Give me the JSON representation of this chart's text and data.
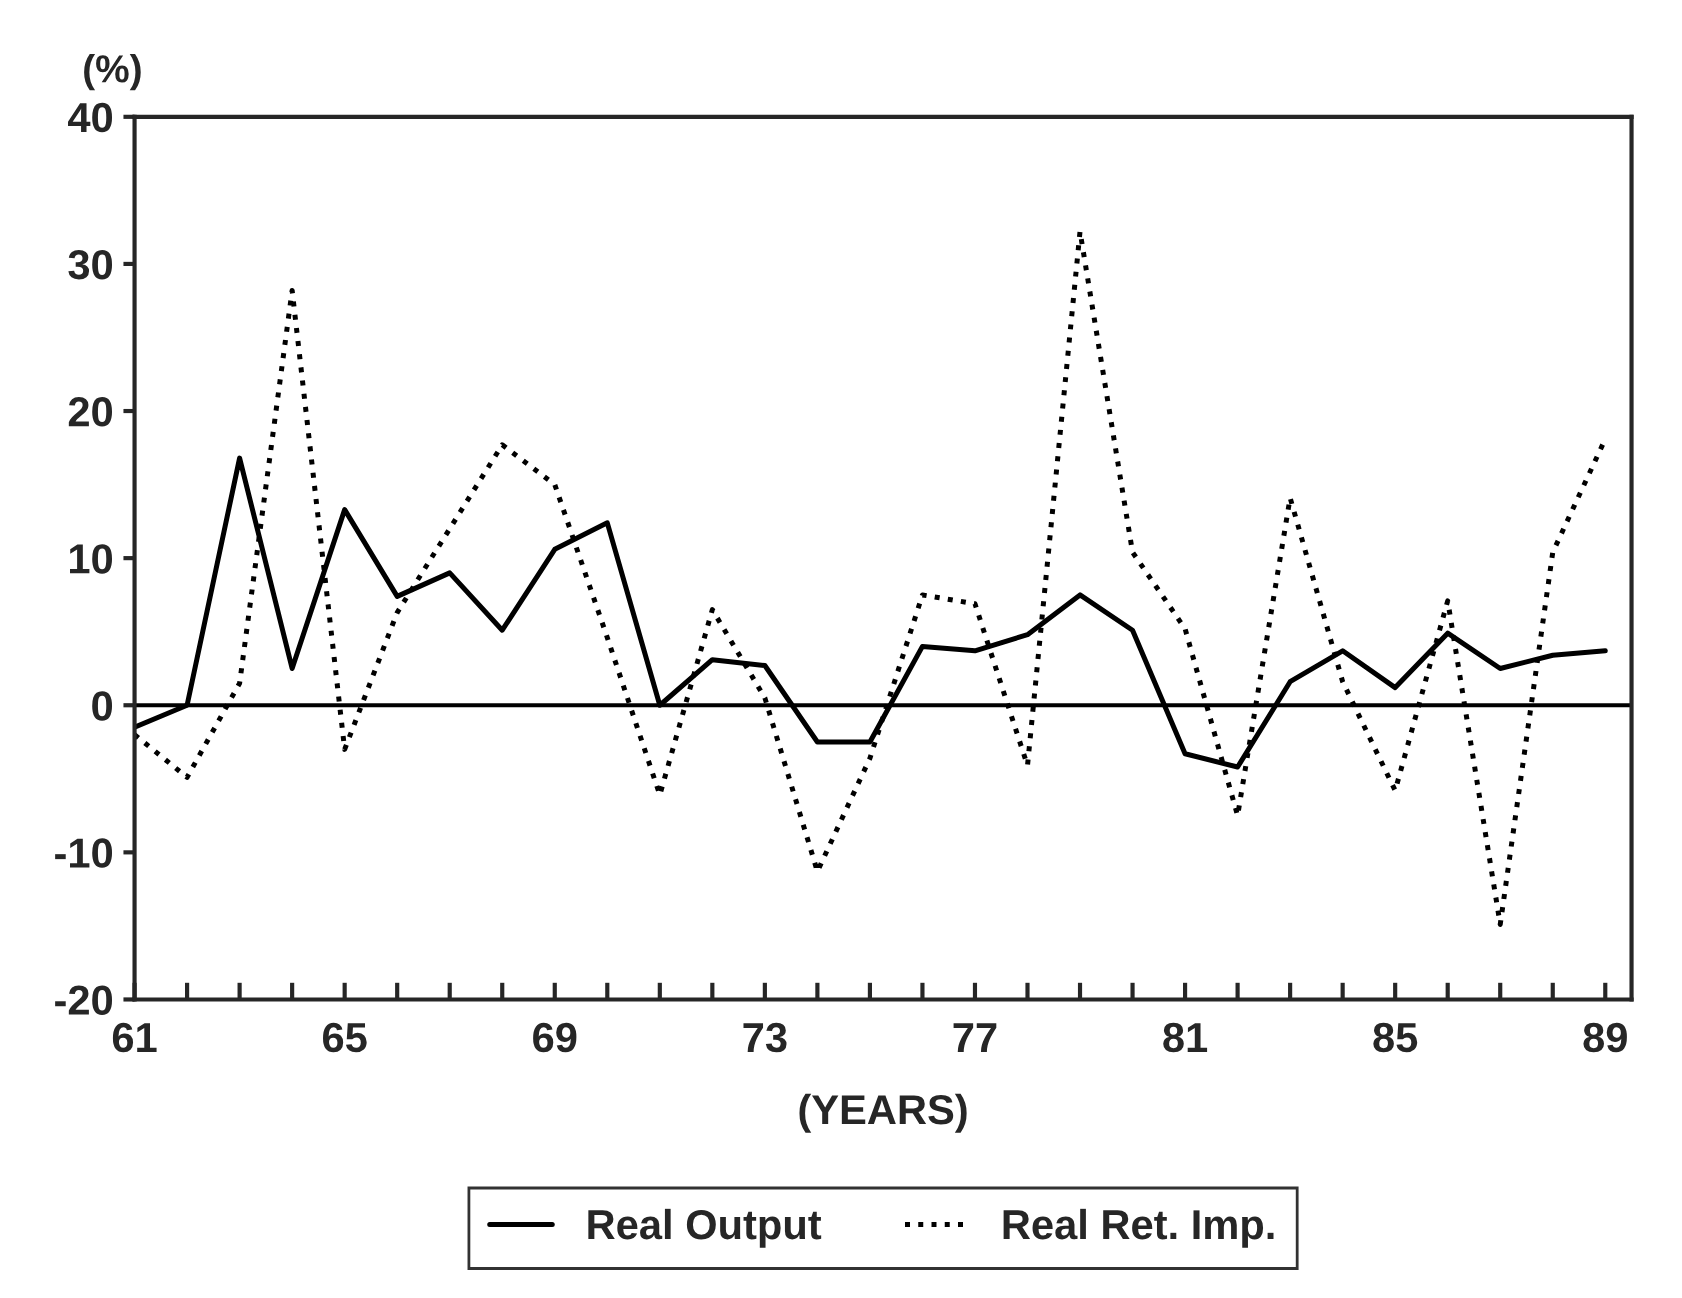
{
  "chart_data": {
    "type": "line",
    "ylabel": "(%)",
    "xlabel": "(YEARS)",
    "x": [
      61,
      62,
      63,
      64,
      65,
      66,
      67,
      68,
      69,
      70,
      71,
      72,
      73,
      74,
      75,
      76,
      77,
      78,
      79,
      80,
      81,
      82,
      83,
      84,
      85,
      86,
      87,
      88,
      89
    ],
    "series": [
      {
        "name": "Real Output",
        "color": "#000000",
        "line_style": "solid",
        "values": [
          -1.5,
          0,
          16.8,
          2.5,
          13.3,
          7.4,
          9.0,
          5.1,
          10.6,
          12.4,
          0,
          3.1,
          2.7,
          -2.5,
          -2.5,
          4.0,
          3.7,
          4.8,
          7.5,
          5.1,
          -3.3,
          -4.2,
          1.6,
          3.7,
          1.2,
          4.9,
          2.5,
          3.4,
          3.7
        ]
      },
      {
        "name": "Real Ret. Imp.",
        "color": "#000000",
        "line_style": "dotted",
        "values": [
          -2,
          -4.9,
          1.5,
          28.2,
          -3,
          6.3,
          12,
          17.7,
          15,
          4.6,
          -6.1,
          6.5,
          0.5,
          -11.3,
          -3.6,
          7.5,
          6.9,
          -4.1,
          32.2,
          10.4,
          5.2,
          -7.5,
          14.1,
          1.6,
          -5.8,
          7.1,
          -14.9,
          10.4,
          18.1
        ]
      }
    ],
    "xlim": [
      61,
      89.5
    ],
    "ylim": [
      -20,
      40
    ],
    "xticks": [
      61,
      {
        "value": 62,
        "label": null
      },
      {
        "value": 63,
        "label": null
      },
      {
        "value": 64,
        "label": null
      },
      65,
      {
        "value": 66,
        "label": null
      },
      {
        "value": 67,
        "label": null
      },
      {
        "value": 68,
        "label": null
      },
      69,
      {
        "value": 70,
        "label": null
      },
      {
        "value": 71,
        "label": null
      },
      {
        "value": 72,
        "label": null
      },
      73,
      {
        "value": 74,
        "label": null
      },
      {
        "value": 75,
        "label": null
      },
      {
        "value": 76,
        "label": null
      },
      77,
      {
        "value": 78,
        "label": null
      },
      {
        "value": 79,
        "label": null
      },
      {
        "value": 80,
        "label": null
      },
      81,
      {
        "value": 82,
        "label": null
      },
      {
        "value": 83,
        "label": null
      },
      {
        "value": 84,
        "label": null
      },
      85,
      {
        "value": 86,
        "label": null
      },
      {
        "value": 87,
        "label": null
      },
      {
        "value": 88,
        "label": null
      },
      89
    ],
    "yticks": [
      -20,
      -10,
      0,
      10,
      20,
      30,
      40
    ],
    "ref_lines": [
      {
        "axis": "y",
        "value": 0,
        "color": "#000000"
      }
    ],
    "grid": false,
    "legend": "bottom",
    "marker": "none"
  }
}
